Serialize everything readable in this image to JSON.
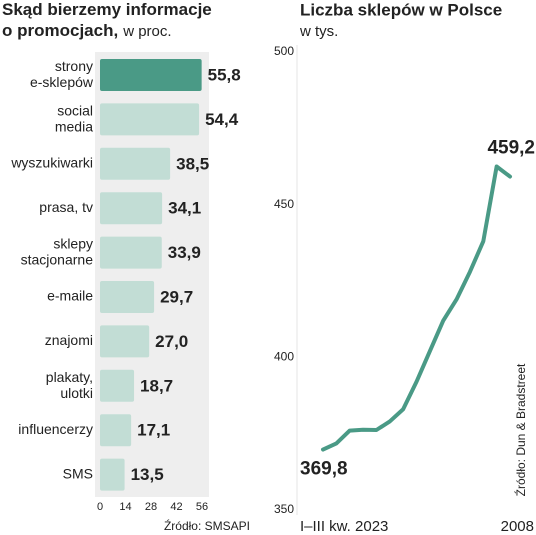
{
  "chart_data": [
    {
      "type": "bar",
      "orientation": "horizontal",
      "title": "Skąd bierzemy informacje\no promocjach,",
      "subtitle": "w proc.",
      "categories": [
        "strony\ne-sklepów",
        "social\nmedia",
        "wyszukiwarki",
        "prasa, tv",
        "sklepy\nstacjonarne",
        "e-maile",
        "znajomi",
        "plakaty,\nulotki",
        "influencerzy",
        "SMS"
      ],
      "values": [
        55.8,
        54.4,
        38.5,
        34.1,
        33.9,
        29.7,
        27.0,
        18.7,
        17.1,
        13.5
      ],
      "value_labels": [
        "55,8",
        "54,4",
        "38,5",
        "34,1",
        "33,9",
        "29,7",
        "27,0",
        "18,7",
        "17,1",
        "13,5"
      ],
      "colors": [
        "#4a9a86",
        "#c2ddd5",
        "#c2ddd5",
        "#c2ddd5",
        "#c2ddd5",
        "#c2ddd5",
        "#c2ddd5",
        "#c2ddd5",
        "#c2ddd5",
        "#c2ddd5"
      ],
      "xlim": [
        0,
        56
      ],
      "xticks": [
        0,
        14,
        28,
        42,
        56
      ],
      "source": "Źródło: SMSAPI"
    },
    {
      "type": "line",
      "title": "Liczba sklepów w Polsce",
      "subtitle": "w tys.",
      "categories": [
        "I–III kw. 2023",
        null,
        null,
        null,
        null,
        null,
        null,
        null,
        null,
        null,
        null,
        null,
        null,
        null,
        "2008"
      ],
      "values": [
        369.8,
        371.8,
        376,
        376.3,
        376.2,
        379,
        383,
        392,
        402,
        412,
        419,
        428,
        438,
        462.5,
        459.2
      ],
      "value_labels": [
        "369,8",
        null,
        null,
        null,
        null,
        null,
        null,
        null,
        null,
        null,
        null,
        null,
        null,
        null,
        "459,2"
      ],
      "color": "#4a9a86",
      "ylim": [
        350,
        500
      ],
      "yticks": [
        350,
        400,
        450,
        500
      ],
      "source": "Źródło: Dun & Bradstreet"
    }
  ]
}
